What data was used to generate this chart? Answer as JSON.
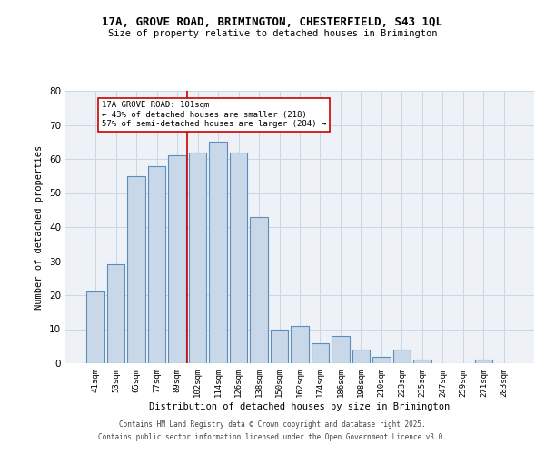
{
  "title1": "17A, GROVE ROAD, BRIMINGTON, CHESTERFIELD, S43 1QL",
  "title2": "Size of property relative to detached houses in Brimington",
  "xlabel": "Distribution of detached houses by size in Brimington",
  "ylabel": "Number of detached properties",
  "categories": [
    "41sqm",
    "53sqm",
    "65sqm",
    "77sqm",
    "89sqm",
    "102sqm",
    "114sqm",
    "126sqm",
    "138sqm",
    "150sqm",
    "162sqm",
    "174sqm",
    "186sqm",
    "198sqm",
    "210sqm",
    "223sqm",
    "235sqm",
    "247sqm",
    "259sqm",
    "271sqm",
    "283sqm"
  ],
  "values": [
    21,
    29,
    55,
    58,
    61,
    62,
    65,
    62,
    43,
    10,
    11,
    6,
    8,
    4,
    2,
    4,
    1,
    0,
    0,
    1,
    0
  ],
  "bar_color": "#c8d8e8",
  "bar_edge_color": "#5b8db8",
  "property_line_idx": 5,
  "annotation_text": "17A GROVE ROAD: 101sqm\n← 43% of detached houses are smaller (218)\n57% of semi-detached houses are larger (284) →",
  "annotation_box_color": "#ffffff",
  "annotation_box_edge": "#cc0000",
  "line_color": "#cc0000",
  "ylim": [
    0,
    80
  ],
  "yticks": [
    0,
    10,
    20,
    30,
    40,
    50,
    60,
    70,
    80
  ],
  "grid_color": "#c8d8e8",
  "background_color": "#eef2f7",
  "footer1": "Contains HM Land Registry data © Crown copyright and database right 2025.",
  "footer2": "Contains public sector information licensed under the Open Government Licence v3.0."
}
